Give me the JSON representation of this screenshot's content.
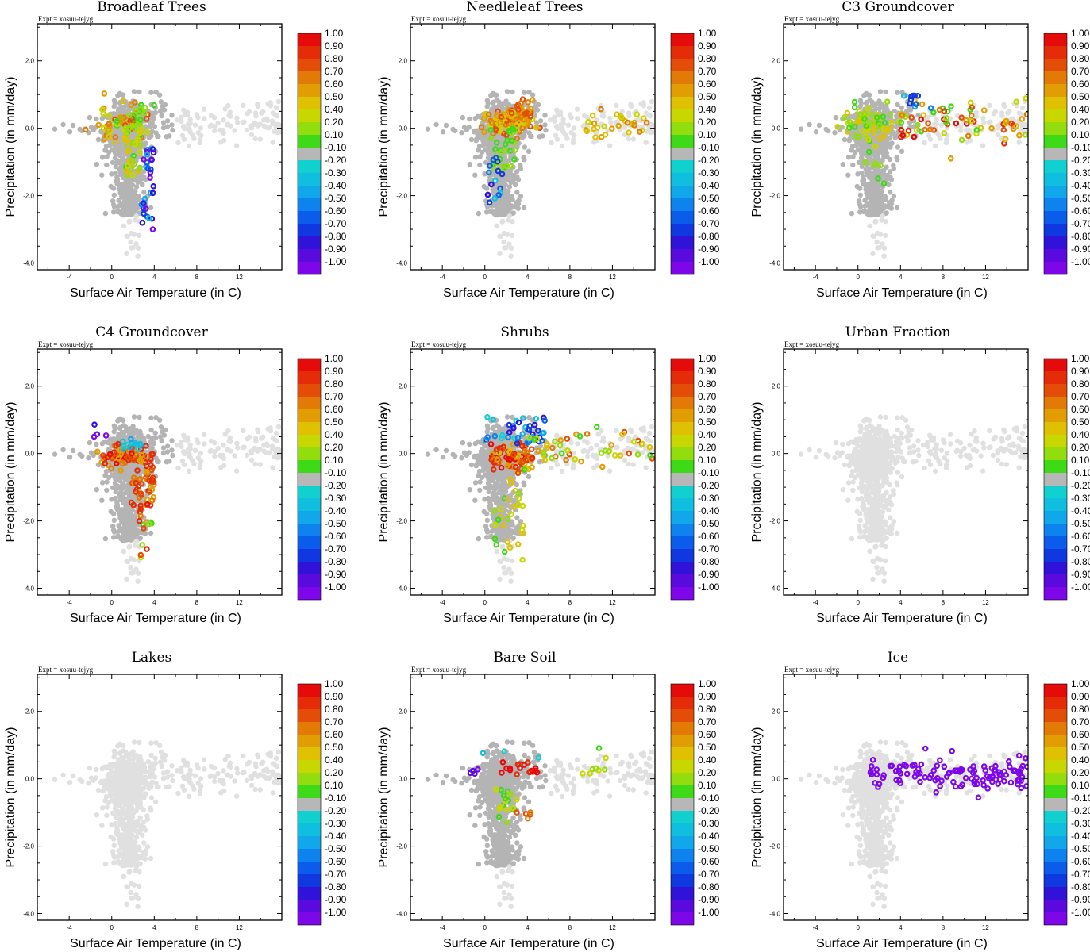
{
  "experiment_label": "Expt = xosuu-tejyg",
  "colorbar": {
    "labels": [
      "1.00",
      "0.90",
      "0.80",
      "0.70",
      "0.60",
      "0.50",
      "0.40",
      "0.20",
      "0.10",
      "-0.10",
      "-0.20",
      "-0.30",
      "-0.40",
      "-0.50",
      "-0.60",
      "-0.70",
      "-0.80",
      "-0.90",
      "-1.00"
    ],
    "colors": [
      "#e60b0b",
      "#e52c09",
      "#e44d07",
      "#e27a05",
      "#e29d02",
      "#e0c101",
      "#c8d700",
      "#93dc0d",
      "#3ed917",
      "#b7b7b7",
      "#11d0d0",
      "#10bfe0",
      "#10a8eb",
      "#0e82ee",
      "#0b5ceb",
      "#1038e0",
      "#3112d9",
      "#5a0adc",
      "#7d07e8"
    ]
  },
  "chart_data": [
    {
      "type": "scatter",
      "title": "Broadleaf Trees",
      "xlabel": "Surface Air Temperature (in C)",
      "ylabel": "Precipitation (in mm/day)",
      "xlim": [
        -7,
        16
      ],
      "ylim": [
        -4.2,
        3.1
      ],
      "xticks": [
        "-4",
        "0",
        "4",
        "8",
        "12"
      ],
      "yticks": [
        "2.0",
        "0.0",
        "-2.0",
        "-4.0"
      ],
      "pattern": "bl"
    },
    {
      "type": "scatter",
      "title": "Needleleaf Trees",
      "xlabel": "Surface Air Temperature (in C)",
      "ylabel": "Precipitation (in mm/day)",
      "xlim": [
        -7,
        16
      ],
      "ylim": [
        -4.2,
        3.1
      ],
      "xticks": [
        "-4",
        "0",
        "4",
        "8",
        "12"
      ],
      "yticks": [
        "2.0",
        "0.0",
        "-2.0",
        "-4.0"
      ],
      "pattern": "nl"
    },
    {
      "type": "scatter",
      "title": "C3 Groundcover",
      "xlabel": "Surface Air Temperature (in C)",
      "ylabel": "Precipitation (in mm/day)",
      "xlim": [
        -7,
        16
      ],
      "ylim": [
        -4.2,
        3.1
      ],
      "xticks": [
        "-4",
        "0",
        "4",
        "8",
        "12"
      ],
      "yticks": [
        "2.0",
        "0.0",
        "-2.0",
        "-4.0"
      ],
      "pattern": "c3"
    },
    {
      "type": "scatter",
      "title": "C4 Groundcover",
      "xlabel": "Surface Air Temperature (in C)",
      "ylabel": "Precipitation (in mm/day)",
      "xlim": [
        -7,
        16
      ],
      "ylim": [
        -4.2,
        3.1
      ],
      "xticks": [
        "-4",
        "0",
        "4",
        "8",
        "12"
      ],
      "yticks": [
        "2.0",
        "0.0",
        "-2.0",
        "-4.0"
      ],
      "pattern": "c4"
    },
    {
      "type": "scatter",
      "title": "Shrubs",
      "xlabel": "Surface Air Temperature (in C)",
      "ylabel": "Precipitation (in mm/day)",
      "xlim": [
        -7,
        16
      ],
      "ylim": [
        -4.2,
        3.1
      ],
      "xticks": [
        "-4",
        "0",
        "4",
        "8",
        "12"
      ],
      "yticks": [
        "2.0",
        "0.0",
        "-2.0",
        "-4.0"
      ],
      "pattern": "sh"
    },
    {
      "type": "scatter",
      "title": "Urban Fraction",
      "xlabel": "Surface Air Temperature (in C)",
      "ylabel": "Precipitation (in mm/day)",
      "xlim": [
        -7,
        16
      ],
      "ylim": [
        -4.2,
        3.1
      ],
      "xticks": [
        "-4",
        "0",
        "4",
        "8",
        "12"
      ],
      "yticks": [
        "2.0",
        "0.0",
        "-2.0",
        "-4.0"
      ],
      "pattern": "none"
    },
    {
      "type": "scatter",
      "title": "Lakes",
      "xlabel": "Surface Air Temperature (in C)",
      "ylabel": "Precipitation (in mm/day)",
      "xlim": [
        -7,
        16
      ],
      "ylim": [
        -4.2,
        3.1
      ],
      "xticks": [
        "-4",
        "0",
        "4",
        "8",
        "12"
      ],
      "yticks": [
        "2.0",
        "0.0",
        "-2.0",
        "-4.0"
      ],
      "pattern": "none"
    },
    {
      "type": "scatter",
      "title": "Bare Soil",
      "xlabel": "Surface Air Temperature (in C)",
      "ylabel": "Precipitation (in mm/day)",
      "xlim": [
        -7,
        16
      ],
      "ylim": [
        -4.2,
        3.1
      ],
      "xticks": [
        "-4",
        "0",
        "4",
        "8",
        "12"
      ],
      "yticks": [
        "2.0",
        "0.0",
        "-2.0",
        "-4.0"
      ],
      "pattern": "bs"
    },
    {
      "type": "scatter",
      "title": "Ice",
      "xlabel": "Surface Air Temperature (in C)",
      "ylabel": "Precipitation (in mm/day)",
      "xlim": [
        -7,
        16
      ],
      "ylim": [
        -4.2,
        3.1
      ],
      "xticks": [
        "-4",
        "0",
        "4",
        "8",
        "12"
      ],
      "yticks": [
        "2.0",
        "0.0",
        "-2.0",
        "-4.0"
      ],
      "pattern": "ice"
    }
  ]
}
